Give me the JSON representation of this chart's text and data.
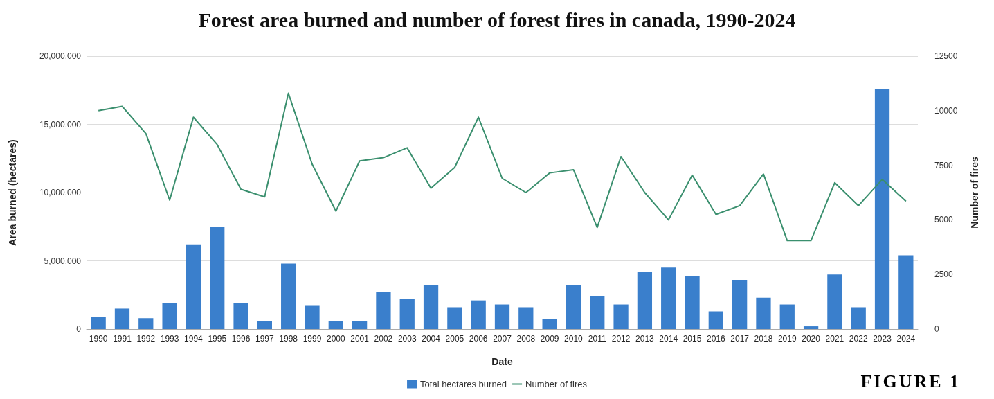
{
  "chart_data": {
    "type": "bar",
    "title": "Forest area burned and number of forest fires in canada, 1990-2024",
    "xlabel": "Date",
    "ylabel": "Area burned (hectares)",
    "y2label": "Number of fires",
    "annotations": [
      "FIGURE 1"
    ],
    "categories": [
      "1990",
      "1991",
      "1992",
      "1993",
      "1994",
      "1995",
      "1996",
      "1997",
      "1998",
      "1999",
      "2000",
      "2001",
      "2002",
      "2003",
      "2004",
      "2005",
      "2006",
      "2007",
      "2008",
      "2009",
      "2010",
      "2011",
      "2012",
      "2013",
      "2014",
      "2015",
      "2016",
      "2017",
      "2018",
      "2019",
      "2020",
      "2021",
      "2022",
      "2023",
      "2024"
    ],
    "series": [
      {
        "name": "Total hectares burned",
        "color": "#3a7fcc",
        "values": [
          900000,
          1500000,
          800000,
          1900000,
          6200000,
          7500000,
          1900000,
          600000,
          4800000,
          1700000,
          600000,
          600000,
          2700000,
          2200000,
          3200000,
          1600000,
          2100000,
          1800000,
          1600000,
          750000,
          3200000,
          2400000,
          1800000,
          4200000,
          4500000,
          3900000,
          1300000,
          3600000,
          2300000,
          1800000,
          200000,
          4000000,
          1600000,
          17600000,
          5400000
        ]
      },
      {
        "name": "Number of fires",
        "type": "line",
        "axis": "y2",
        "color": "#3a8f6e",
        "values": [
          10000,
          10200,
          8950,
          5900,
          9700,
          8450,
          6400,
          6050,
          10800,
          7550,
          5400,
          7700,
          7850,
          8300,
          6450,
          7400,
          9700,
          6900,
          6250,
          7150,
          7300,
          4650,
          7900,
          6250,
          5000,
          7050,
          5250,
          5650,
          7100,
          4050,
          4050,
          6700,
          5650,
          6850,
          5850
        ]
      }
    ],
    "ylim": [
      0,
      20000000
    ],
    "yticks": [
      {
        "value": 0,
        "label": "0"
      },
      {
        "value": 5000000,
        "label": "5,000,000"
      },
      {
        "value": 10000000,
        "label": "10,000,000"
      },
      {
        "value": 15000000,
        "label": "15,000,000"
      },
      {
        "value": 20000000,
        "label": "20,000,000"
      }
    ],
    "y2lim": [
      0,
      12500
    ],
    "y2ticks": [
      0,
      2500,
      5000,
      7500,
      10000,
      12500
    ],
    "grid": "y",
    "legend": "bottom",
    "marker": "none",
    "line_style": "solid"
  }
}
